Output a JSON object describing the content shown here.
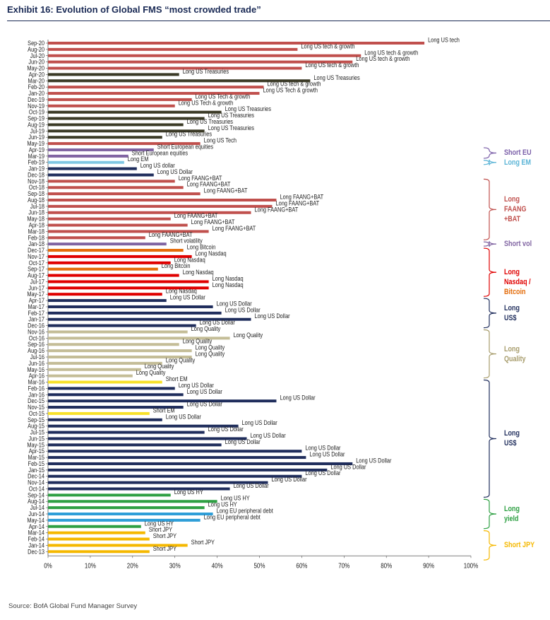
{
  "title": "Exhibit 16: Evolution of Global FMS “most crowded trade”",
  "source": "Source: BofA Global Fund Manager Survey",
  "chart_data": {
    "type": "bar",
    "orientation": "horizontal",
    "xlim": [
      0,
      100
    ],
    "x_ticks": [
      "0%",
      "10%",
      "20%",
      "30%",
      "40%",
      "50%",
      "60%",
      "70%",
      "80%",
      "90%",
      "100%"
    ],
    "grid": false,
    "rows": [
      {
        "month": "Sep-20",
        "value": 89,
        "label": "Long US tech",
        "color": "#c0504d"
      },
      {
        "month": "Aug-20",
        "value": 59,
        "label": "Long US tech & growth",
        "color": "#c0504d"
      },
      {
        "month": "Jul-20",
        "value": 74,
        "label": "Long US tech & growth",
        "color": "#c0504d"
      },
      {
        "month": "Jun-20",
        "value": 72,
        "label": "Long US tech & growth",
        "color": "#c0504d"
      },
      {
        "month": "May-20",
        "value": 60,
        "label": "Long US tech & growth",
        "color": "#c0504d"
      },
      {
        "month": "Apr-20",
        "value": 31,
        "label": "Long US Treasuries",
        "color": "#3b3a26"
      },
      {
        "month": "Mar-20",
        "value": 62,
        "label": "Long US Treasuries",
        "color": "#3b3a26"
      },
      {
        "month": "Feb-20",
        "value": 51,
        "label": "Long US tech & growth",
        "color": "#c0504d"
      },
      {
        "month": "Jan-20",
        "value": 50,
        "label": "Long US Tech & growth",
        "color": "#c0504d"
      },
      {
        "month": "Dec-19",
        "value": 34,
        "label": "Long US Tech & growth",
        "color": "#c0504d"
      },
      {
        "month": "Nov-19",
        "value": 30,
        "label": "Long US Tech & growth",
        "color": "#c0504d"
      },
      {
        "month": "Oct-19",
        "value": 41,
        "label": "Long US Treasuries",
        "color": "#3b3a26"
      },
      {
        "month": "Sep-19",
        "value": 37,
        "label": "Long US Treasuries",
        "color": "#3b3a26"
      },
      {
        "month": "Aug-19",
        "value": 32,
        "label": "Long US Treasuries",
        "color": "#3b3a26"
      },
      {
        "month": "Jul-19",
        "value": 37,
        "label": "Long US Treasuries",
        "color": "#3b3a26"
      },
      {
        "month": "Jun-19",
        "value": 27,
        "label": "Long US Treasuries",
        "color": "#3b3a26"
      },
      {
        "month": "May-19",
        "value": 36,
        "label": "Long US Tech",
        "color": "#c0504d"
      },
      {
        "month": "Apr-19",
        "value": 25,
        "label": "Short European equities",
        "color": "#8064a2"
      },
      {
        "month": "Mar-19",
        "value": 19,
        "label": "Short European equities",
        "color": "#8064a2"
      },
      {
        "month": "Feb-19",
        "value": 18,
        "label": "Long EM",
        "color": "#7fc6e2"
      },
      {
        "month": "Jan-19",
        "value": 21,
        "label": "Long US dollar",
        "color": "#1f2d5c"
      },
      {
        "month": "Dec-18",
        "value": 25,
        "label": "Long US Dollar",
        "color": "#1f2d5c"
      },
      {
        "month": "Nov-18",
        "value": 30,
        "label": "Long FAANG+BAT",
        "color": "#c0504d"
      },
      {
        "month": "Oct-18",
        "value": 32,
        "label": "Long FAANG+BAT",
        "color": "#c0504d"
      },
      {
        "month": "Sep-18",
        "value": 36,
        "label": "Long FAANG+BAT",
        "color": "#c0504d"
      },
      {
        "month": "Aug-18",
        "value": 54,
        "label": "Long FAANG+BAT",
        "color": "#c0504d"
      },
      {
        "month": "Jul-18",
        "value": 53,
        "label": "Long FAANG+BAT",
        "color": "#c0504d"
      },
      {
        "month": "Jun-18",
        "value": 48,
        "label": "Long FAANG+BAT",
        "color": "#c0504d"
      },
      {
        "month": "May-18",
        "value": 29,
        "label": "Long FAANG+BAT",
        "color": "#c0504d"
      },
      {
        "month": "Apr-18",
        "value": 33,
        "label": "Long FAANG+BAT",
        "color": "#c0504d"
      },
      {
        "month": "Mar-18",
        "value": 38,
        "label": "Long FAANG+BAT",
        "color": "#c0504d"
      },
      {
        "month": "Feb-18",
        "value": 23,
        "label": "Long FAANG+BAT",
        "color": "#c0504d"
      },
      {
        "month": "Jan-18",
        "value": 28,
        "label": "Short volatility",
        "color": "#8064a2"
      },
      {
        "month": "Dec-17",
        "value": 32,
        "label": "Long Bitcoin",
        "color": "#e46c0a"
      },
      {
        "month": "Nov-17",
        "value": 34,
        "label": "Long Nasdaq",
        "color": "#e00000"
      },
      {
        "month": "Oct-17",
        "value": 29,
        "label": "Long Nasdaq",
        "color": "#e00000"
      },
      {
        "month": "Sep-17",
        "value": 26,
        "label": "Long Bitcoin",
        "color": "#e46c0a"
      },
      {
        "month": "Aug-17",
        "value": 31,
        "label": "Long Nasdaq",
        "color": "#e00000"
      },
      {
        "month": "Jul-17",
        "value": 38,
        "label": "Long Nasdaq",
        "color": "#e00000"
      },
      {
        "month": "Jun-17",
        "value": 38,
        "label": "Long Nasdaq",
        "color": "#e00000"
      },
      {
        "month": "May-17",
        "value": 27,
        "label": "Long Nasdaq",
        "color": "#e00000"
      },
      {
        "month": "Apr-17",
        "value": 28,
        "label": "Long US Dollar",
        "color": "#1f2d5c"
      },
      {
        "month": "Mar-17",
        "value": 39,
        "label": "Long US Dollar",
        "color": "#1f2d5c"
      },
      {
        "month": "Feb-17",
        "value": 41,
        "label": "Long US Dollar",
        "color": "#1f2d5c"
      },
      {
        "month": "Jan-17",
        "value": 48,
        "label": "Long US Dollar",
        "color": "#1f2d5c"
      },
      {
        "month": "Dec-16",
        "value": 35,
        "label": "Long US Dollar",
        "color": "#1f2d5c"
      },
      {
        "month": "Nov-16",
        "value": 33,
        "label": "Long Quality",
        "color": "#c4bd97"
      },
      {
        "month": "Oct-16",
        "value": 43,
        "label": "Long Quality",
        "color": "#c4bd97"
      },
      {
        "month": "Sep-16",
        "value": 31,
        "label": "Long Quality",
        "color": "#c4bd97"
      },
      {
        "month": "Aug-16",
        "value": 34,
        "label": "Long Quality",
        "color": "#c4bd97"
      },
      {
        "month": "Jul-16",
        "value": 34,
        "label": "Long Quality",
        "color": "#c4bd97"
      },
      {
        "month": "Jun-16",
        "value": 27,
        "label": "Long Quality",
        "color": "#c4bd97"
      },
      {
        "month": "May-16",
        "value": 22,
        "label": "Long Quality",
        "color": "#c4bd97"
      },
      {
        "month": "Apr-16",
        "value": 20,
        "label": "Long Quality",
        "color": "#c4bd97"
      },
      {
        "month": "Mar-16",
        "value": 27,
        "label": "Short EM",
        "color": "#f7e12a"
      },
      {
        "month": "Feb-16",
        "value": 30,
        "label": "Long US Dollar",
        "color": "#1f2d5c"
      },
      {
        "month": "Jan-16",
        "value": 32,
        "label": "Long US Dollar",
        "color": "#1f2d5c"
      },
      {
        "month": "Dec-15",
        "value": 54,
        "label": "Long US Dollar",
        "color": "#1f2d5c"
      },
      {
        "month": "Nov-15",
        "value": 32,
        "label": "Long US Dollar",
        "color": "#1f2d5c"
      },
      {
        "month": "Oct-15",
        "value": 24,
        "label": "Short EM",
        "color": "#f7e12a"
      },
      {
        "month": "Sep-15",
        "value": 27,
        "label": "Long US Dollar",
        "color": "#1f2d5c"
      },
      {
        "month": "Aug-15",
        "value": 45,
        "label": "Long US Dollar",
        "color": "#1f2d5c"
      },
      {
        "month": "Jul-15",
        "value": 37,
        "label": "Long US Dollar",
        "color": "#1f2d5c"
      },
      {
        "month": "Jun-15",
        "value": 47,
        "label": "Long US Dollar",
        "color": "#1f2d5c"
      },
      {
        "month": "May-15",
        "value": 41,
        "label": "Long US Dollar",
        "color": "#1f2d5c"
      },
      {
        "month": "Apr-15",
        "value": 60,
        "label": "Long US Dollar",
        "color": "#1f2d5c"
      },
      {
        "month": "Mar-15",
        "value": 61,
        "label": "Long US Dollar",
        "color": "#1f2d5c"
      },
      {
        "month": "Feb-15",
        "value": 72,
        "label": "Long US Dollar",
        "color": "#1f2d5c"
      },
      {
        "month": "Jan-15",
        "value": 66,
        "label": "Long US Dollar",
        "color": "#1f2d5c"
      },
      {
        "month": "Dec-14",
        "value": 60,
        "label": "Long US Dollar",
        "color": "#1f2d5c"
      },
      {
        "month": "Nov-14",
        "value": 52,
        "label": "Long US Dollar",
        "color": "#1f2d5c"
      },
      {
        "month": "Oct-14",
        "value": 43,
        "label": "Long US Dollar",
        "color": "#1f2d5c"
      },
      {
        "month": "Sep-14",
        "value": 29,
        "label": "Long US HY",
        "color": "#2ea043"
      },
      {
        "month": "Aug-14",
        "value": 40,
        "label": "Long US HY",
        "color": "#2ea043"
      },
      {
        "month": "Jul-14",
        "value": 37,
        "label": "Long US HY",
        "color": "#2ea043"
      },
      {
        "month": "Jun-14",
        "value": 39,
        "label": "Long EU peripheral debt",
        "color": "#2e9ed8"
      },
      {
        "month": "May-14",
        "value": 36,
        "label": "Long EU peripheral debt",
        "color": "#2e9ed8"
      },
      {
        "month": "Apr-14",
        "value": 22,
        "label": "Long US HY",
        "color": "#2ea043"
      },
      {
        "month": "Mar-14",
        "value": 23,
        "label": "Short JPY",
        "color": "#f5b800"
      },
      {
        "month": "Feb-14",
        "value": 24,
        "label": "Short JPY",
        "color": "#f5b800"
      },
      {
        "month": "Jan-14",
        "value": 33,
        "label": "Short JPY",
        "color": "#f5b800"
      },
      {
        "month": "Dec-13",
        "value": 24,
        "label": "Short JPY",
        "color": "#f5b800"
      }
    ],
    "annotation_groups": [
      {
        "lines": [
          "Short EU"
        ],
        "color": "#7a5ea8",
        "first": 17,
        "last": 18
      },
      {
        "lines": [
          "Long EM"
        ],
        "color": "#5ab4d6",
        "first": 19,
        "last": 19
      },
      {
        "lines": [
          "Long",
          "FAANG",
          "+BAT"
        ],
        "color": "#c0504d",
        "first": 22,
        "last": 31
      },
      {
        "lines": [
          "Short vol"
        ],
        "color": "#8064a2",
        "first": 32,
        "last": 32
      },
      {
        "lines": [
          "Long",
          "Nasdaq /"
        ],
        "color": "#e00000",
        "first": 33,
        "last": 40
      },
      {
        "lines": [
          "Bitcoin"
        ],
        "color": "#e46c0a",
        "first": -1,
        "last": -1
      },
      {
        "lines": [
          "Long",
          "US$"
        ],
        "color": "#1f2d5c",
        "first": 41,
        "last": 45
      },
      {
        "lines": [
          "Long",
          "Quality"
        ],
        "color": "#a79c6b",
        "first": 46,
        "last": 53
      },
      {
        "lines": [
          "Long",
          "US$"
        ],
        "color": "#1f2d5c",
        "first": 54,
        "last": 72
      },
      {
        "lines": [
          "Long",
          "yield"
        ],
        "color": "#2ea043",
        "first": 73,
        "last": 77
      },
      {
        "lines": [
          "Short JPY"
        ],
        "color": "#f5b800",
        "first": 78,
        "last": 82
      }
    ]
  }
}
